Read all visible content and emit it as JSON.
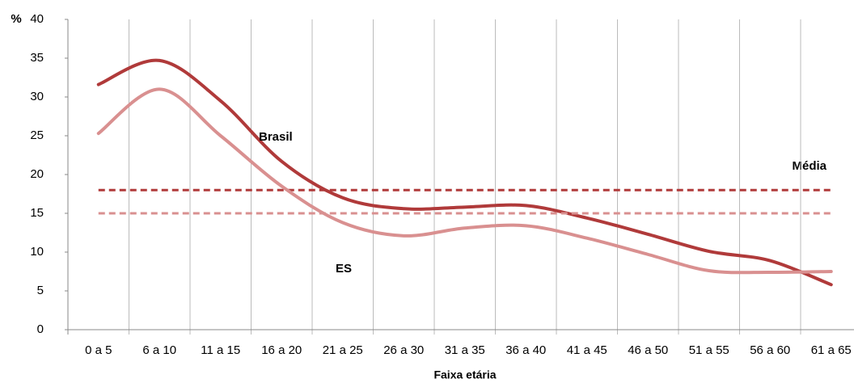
{
  "chart_data": {
    "type": "line",
    "y_label": "%",
    "x_label": "Faixa etária",
    "categories": [
      "0 a 5",
      "6 a 10",
      "11 a 15",
      "16 a 20",
      "21 a 25",
      "26 a 30",
      "31 a 35",
      "36 a 40",
      "41 a 45",
      "46 a 50",
      "51 a 55",
      "56 a 60",
      "61 a 65"
    ],
    "series": [
      {
        "name": "Brasil",
        "color": "#b03a3a",
        "mean": 18,
        "values": [
          31.6,
          34.7,
          29.5,
          21.7,
          17,
          15.6,
          15.8,
          16,
          14.4,
          12.3,
          10.1,
          8.9,
          5.8
        ]
      },
      {
        "name": "ES",
        "color": "#d99090",
        "mean": 15,
        "values": [
          25.3,
          31,
          25,
          18.5,
          13.8,
          12.1,
          13.1,
          13.4,
          11.8,
          9.7,
          7.6,
          7.4,
          7.5
        ]
      }
    ],
    "mean_label": "Média",
    "ylim": [
      0,
      40
    ],
    "yticks": [
      0,
      5,
      10,
      15,
      20,
      25,
      30,
      35,
      40
    ],
    "grid": "vertical",
    "smooth": true
  }
}
